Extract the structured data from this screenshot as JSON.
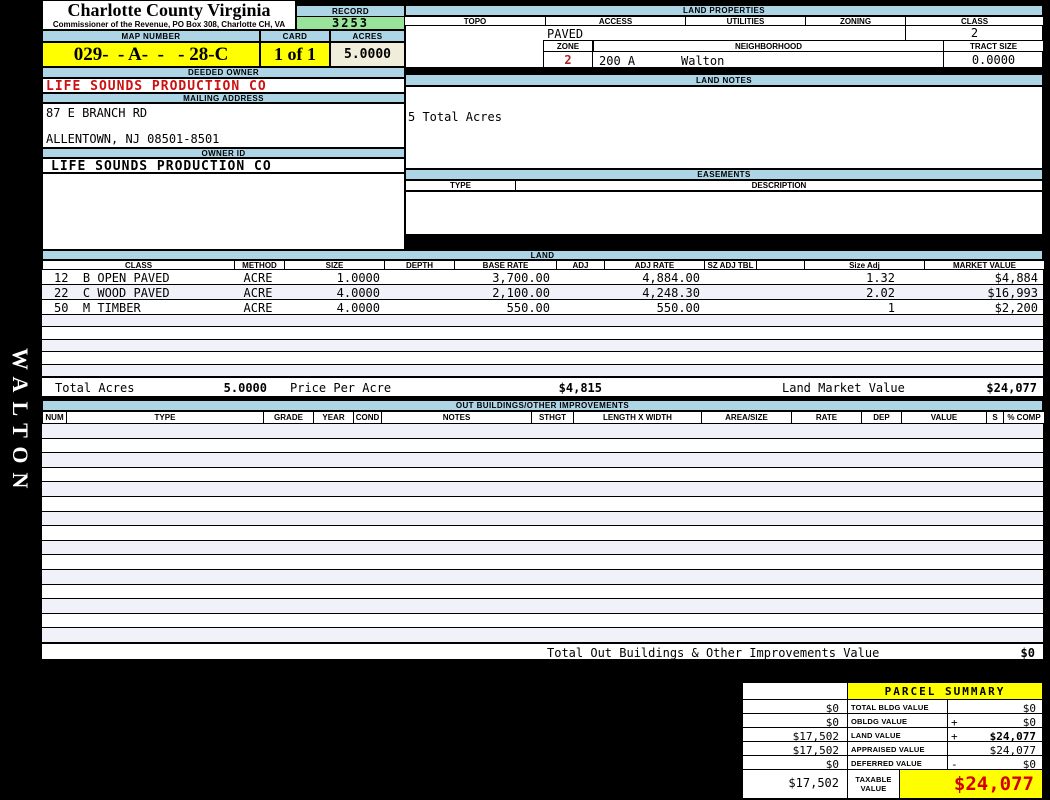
{
  "colors": {
    "header-blue": "#aed5e6",
    "record-green": "#98e49a",
    "highlight-yellow": "#ffff00",
    "acres-cream": "#f0eedb",
    "owner-red": "#cc1111",
    "zone-red": "#aa2222",
    "taxable-red": "#d40000",
    "stripe": "#f1f1f9"
  },
  "header": {
    "county_title": "Charlotte County Virginia",
    "county_subtitle": "Commissioner of the Revenue, PO Box 308, Charlotte CH, VA",
    "record_label": "RECORD",
    "record_value": "3253",
    "map_label": "MAP NUMBER",
    "map_value": "029-  - A-  -   - 28-C",
    "card_label": "CARD",
    "card_value": "1 of 1",
    "acres_label": "ACRES",
    "acres_value": "5.0000"
  },
  "owner": {
    "deeded_label": "DEEDED OWNER",
    "deeded_value": "LIFE SOUNDS PRODUCTION CO",
    "mailing_label": "MAILING ADDRESS",
    "mailing_line1": "87 E BRANCH RD",
    "mailing_line2": "ALLENTOWN, NJ 08501-8501",
    "owner_id_label": "OWNER ID",
    "owner_id_value": "LIFE SOUNDS PRODUCTION CO"
  },
  "sidebar": {
    "district": "WALTON"
  },
  "land_properties": {
    "title": "LAND PROPERTIES",
    "topo_label": "TOPO",
    "access_label": "ACCESS",
    "utilities_label": "UTILITIES",
    "zoning_label": "ZONING",
    "class_label": "CLASS",
    "access_value": "PAVED",
    "class_value": "2",
    "zone_label": "ZONE",
    "zone_value": "2",
    "neighborhood_label": "NEIGHBORHOOD",
    "neighborhood_code": "200 A",
    "neighborhood_name": "Walton",
    "tract_label": "TRACT SIZE",
    "tract_value": "0.0000"
  },
  "land_notes": {
    "title": "LAND NOTES",
    "note": "5 Total Acres"
  },
  "easements": {
    "title": "EASEMENTS",
    "type_label": "TYPE",
    "description_label": "DESCRIPTION"
  },
  "land": {
    "title": "LAND",
    "headers": {
      "class": "CLASS",
      "method": "METHOD",
      "size": "SIZE",
      "depth": "DEPTH",
      "base_rate": "BASE RATE",
      "adj": "ADJ",
      "adj_rate": "ADJ RATE",
      "sz_adj_tbl": "SZ ADJ TBL",
      "size_adj": "Size Adj",
      "market_value": "MARKET VALUE"
    },
    "rows": [
      {
        "class": "12  B OPEN PAVED",
        "method": "ACRE",
        "size": "1.0000",
        "base_rate": "3,700.00",
        "adj_rate": "4,884.00",
        "size_adj": "1.32",
        "market_value": "$4,884"
      },
      {
        "class": "22  C WOOD PAVED",
        "method": "ACRE",
        "size": "4.0000",
        "base_rate": "2,100.00",
        "adj_rate": "4,248.30",
        "size_adj": "2.02",
        "market_value": "$16,993"
      },
      {
        "class": "50  M TIMBER",
        "method": "ACRE",
        "size": "4.0000",
        "base_rate": "550.00",
        "adj_rate": "550.00",
        "size_adj": "1",
        "market_value": "$2,200"
      }
    ],
    "total_acres_label": "Total Acres",
    "total_acres": "5.0000",
    "price_per_acre_label": "Price Per Acre",
    "price_per_acre": "$4,815",
    "market_value_label": "Land Market Value",
    "market_value": "$24,077"
  },
  "out_buildings": {
    "title": "OUT BUILDINGS/OTHER IMPROVEMENTS",
    "headers": {
      "num": "NUM",
      "type": "TYPE",
      "grade": "GRADE",
      "year": "YEAR",
      "cond": "COND",
      "notes": "NOTES",
      "sthgt": "STHGT",
      "length_width": "LENGTH X WIDTH",
      "area_size": "AREA/SIZE",
      "rate": "RATE",
      "dep": "DEP",
      "value": "VALUE",
      "s": "S",
      "pct_comp": "% COMP"
    },
    "total_label": "Total Out Buildings & Other Improvements Value",
    "total_value": "$0"
  },
  "parcel_summary": {
    "title": "PARCEL SUMMARY",
    "rows": [
      {
        "left": "$0",
        "label": "TOTAL BLDG VALUE",
        "sign": "",
        "value": "$0"
      },
      {
        "left": "$0",
        "label": "OBLDG VALUE",
        "sign": "+",
        "value": "$0"
      },
      {
        "left": "$17,502",
        "label": "LAND VALUE",
        "sign": "+",
        "value": "$24,077"
      },
      {
        "left": "$17,502",
        "label": "APPRAISED VALUE",
        "sign": "",
        "value": "$24,077"
      },
      {
        "left": "$0",
        "label": "DEFERRED VALUE",
        "sign": "-",
        "value": "$0"
      }
    ],
    "taxable": {
      "left": "$17,502",
      "label": "TAXABLE VALUE",
      "value": "$24,077"
    }
  }
}
